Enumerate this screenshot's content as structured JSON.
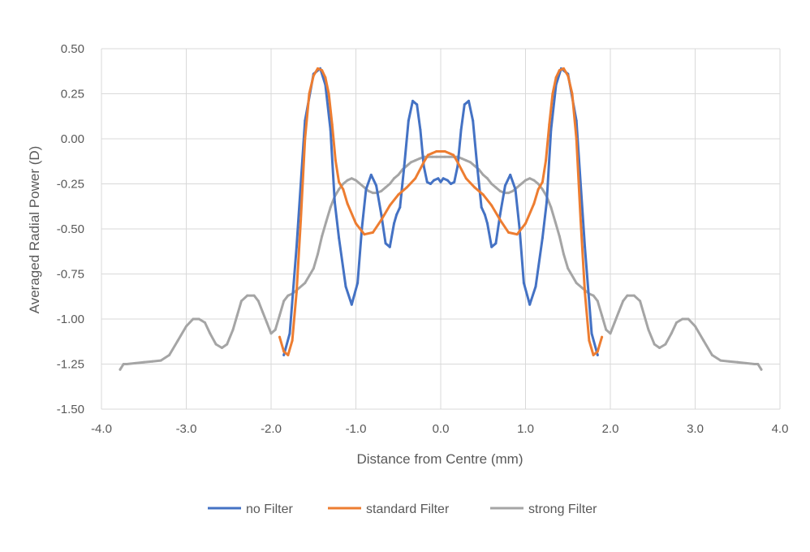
{
  "chart_data": {
    "type": "line",
    "title": "",
    "xlabel": "Distance from Centre (mm)",
    "ylabel": "Averaged Radial Power (D)",
    "xlim": [
      -4.0,
      4.0
    ],
    "ylim": [
      -1.5,
      0.5
    ],
    "x_ticks": [
      "-4.0",
      "-3.0",
      "-2.0",
      "-1.0",
      "0.0",
      "1.0",
      "2.0",
      "3.0",
      "4.0"
    ],
    "y_ticks": [
      "0.50",
      "0.25",
      "0.00",
      "-0.25",
      "-0.50",
      "-0.75",
      "-1.00",
      "-1.25",
      "-1.50"
    ],
    "grid": true,
    "legend_position": "bottom",
    "series": [
      {
        "name": "no Filter",
        "color": "#4472C4",
        "x": [
          -1.85,
          -1.78,
          -1.7,
          -1.6,
          -1.5,
          -1.42,
          -1.36,
          -1.3,
          -1.25,
          -1.2,
          -1.12,
          -1.05,
          -0.98,
          -0.93,
          -0.88,
          -0.82,
          -0.76,
          -0.7,
          -0.65,
          -0.6,
          -0.55,
          -0.52,
          -0.48,
          -0.43,
          -0.38,
          -0.33,
          -0.28,
          -0.24,
          -0.2,
          -0.16,
          -0.12,
          -0.08,
          -0.03,
          0.0,
          0.03,
          0.08,
          0.12,
          0.16,
          0.2,
          0.24,
          0.28,
          0.33,
          0.38,
          0.43,
          0.48,
          0.52,
          0.55,
          0.6,
          0.65,
          0.7,
          0.76,
          0.82,
          0.88,
          0.93,
          0.98,
          1.05,
          1.12,
          1.2,
          1.25,
          1.3,
          1.36,
          1.42,
          1.5,
          1.6,
          1.7,
          1.78,
          1.85
        ],
        "values": [
          -1.2,
          -1.08,
          -0.6,
          0.1,
          0.36,
          0.39,
          0.3,
          0.05,
          -0.35,
          -0.55,
          -0.82,
          -0.92,
          -0.8,
          -0.5,
          -0.28,
          -0.2,
          -0.26,
          -0.42,
          -0.58,
          -0.6,
          -0.47,
          -0.42,
          -0.38,
          -0.15,
          0.1,
          0.21,
          0.19,
          0.05,
          -0.15,
          -0.24,
          -0.25,
          -0.23,
          -0.22,
          -0.24,
          -0.22,
          -0.23,
          -0.25,
          -0.24,
          -0.15,
          0.05,
          0.19,
          0.21,
          0.1,
          -0.15,
          -0.38,
          -0.42,
          -0.47,
          -0.6,
          -0.58,
          -0.42,
          -0.26,
          -0.2,
          -0.28,
          -0.5,
          -0.8,
          -0.92,
          -0.82,
          -0.55,
          -0.35,
          0.05,
          0.3,
          0.39,
          0.36,
          0.1,
          -0.6,
          -1.08,
          -1.2
        ]
      },
      {
        "name": "standard Filter",
        "color": "#ED7D31",
        "x": [
          -1.9,
          -1.85,
          -1.8,
          -1.75,
          -1.7,
          -1.65,
          -1.6,
          -1.55,
          -1.5,
          -1.45,
          -1.4,
          -1.36,
          -1.32,
          -1.28,
          -1.24,
          -1.2,
          -1.15,
          -1.1,
          -1.0,
          -0.9,
          -0.8,
          -0.7,
          -0.6,
          -0.5,
          -0.4,
          -0.3,
          -0.2,
          -0.15,
          -0.1,
          -0.05,
          0.0,
          0.05,
          0.1,
          0.15,
          0.2,
          0.3,
          0.4,
          0.5,
          0.6,
          0.7,
          0.8,
          0.9,
          1.0,
          1.1,
          1.15,
          1.2,
          1.24,
          1.28,
          1.32,
          1.36,
          1.4,
          1.45,
          1.5,
          1.55,
          1.6,
          1.65,
          1.7,
          1.75,
          1.8,
          1.85,
          1.9
        ],
        "values": [
          -1.1,
          -1.18,
          -1.2,
          -1.12,
          -0.85,
          -0.45,
          0.0,
          0.25,
          0.35,
          0.39,
          0.38,
          0.34,
          0.25,
          0.08,
          -0.12,
          -0.24,
          -0.28,
          -0.36,
          -0.47,
          -0.53,
          -0.52,
          -0.45,
          -0.37,
          -0.31,
          -0.27,
          -0.22,
          -0.13,
          -0.09,
          -0.08,
          -0.07,
          -0.07,
          -0.07,
          -0.08,
          -0.09,
          -0.13,
          -0.22,
          -0.27,
          -0.31,
          -0.37,
          -0.45,
          -0.52,
          -0.53,
          -0.47,
          -0.36,
          -0.28,
          -0.24,
          -0.12,
          0.08,
          0.25,
          0.34,
          0.38,
          0.39,
          0.35,
          0.25,
          0.0,
          -0.45,
          -0.85,
          -1.12,
          -1.2,
          -1.18,
          -1.1
        ]
      },
      {
        "name": "strong Filter",
        "color": "#A5A5A5",
        "x": [
          -3.78,
          -3.74,
          -3.7,
          -3.6,
          -3.5,
          -3.4,
          -3.3,
          -3.2,
          -3.1,
          -3.0,
          -2.92,
          -2.85,
          -2.78,
          -2.72,
          -2.65,
          -2.58,
          -2.52,
          -2.45,
          -2.4,
          -2.35,
          -2.28,
          -2.2,
          -2.15,
          -2.1,
          -2.05,
          -2.0,
          -1.95,
          -1.9,
          -1.85,
          -1.8,
          -1.75,
          -1.7,
          -1.6,
          -1.5,
          -1.45,
          -1.4,
          -1.35,
          -1.3,
          -1.25,
          -1.2,
          -1.15,
          -1.1,
          -1.05,
          -1.0,
          -0.95,
          -0.9,
          -0.85,
          -0.8,
          -0.75,
          -0.7,
          -0.65,
          -0.6,
          -0.55,
          -0.5,
          -0.45,
          -0.4,
          -0.35,
          -0.3,
          -0.25,
          -0.2,
          -0.15,
          -0.1,
          -0.05,
          0.0,
          0.05,
          0.1,
          0.15,
          0.2,
          0.25,
          0.3,
          0.35,
          0.4,
          0.45,
          0.5,
          0.55,
          0.6,
          0.65,
          0.7,
          0.75,
          0.8,
          0.85,
          0.9,
          0.95,
          1.0,
          1.05,
          1.1,
          1.15,
          1.2,
          1.25,
          1.3,
          1.35,
          1.4,
          1.45,
          1.5,
          1.6,
          1.7,
          1.75,
          1.8,
          1.85,
          1.9,
          1.95,
          2.0,
          2.05,
          2.1,
          2.15,
          2.2,
          2.28,
          2.35,
          2.4,
          2.45,
          2.52,
          2.58,
          2.65,
          2.72,
          2.78,
          2.85,
          2.92,
          3.0,
          3.1,
          3.2,
          3.3,
          3.4,
          3.5,
          3.6,
          3.7,
          3.74,
          3.78
        ],
        "values": [
          -1.28,
          -1.25,
          -1.25,
          -1.245,
          -1.24,
          -1.235,
          -1.23,
          -1.2,
          -1.12,
          -1.04,
          -1.0,
          -1.0,
          -1.02,
          -1.08,
          -1.14,
          -1.16,
          -1.14,
          -1.06,
          -0.98,
          -0.9,
          -0.87,
          -0.87,
          -0.9,
          -0.96,
          -1.02,
          -1.08,
          -1.06,
          -0.98,
          -0.9,
          -0.87,
          -0.86,
          -0.84,
          -0.8,
          -0.72,
          -0.64,
          -0.54,
          -0.46,
          -0.38,
          -0.32,
          -0.28,
          -0.25,
          -0.23,
          -0.22,
          -0.23,
          -0.25,
          -0.27,
          -0.29,
          -0.3,
          -0.3,
          -0.29,
          -0.27,
          -0.25,
          -0.22,
          -0.2,
          -0.17,
          -0.15,
          -0.13,
          -0.12,
          -0.11,
          -0.1,
          -0.1,
          -0.1,
          -0.1,
          -0.1,
          -0.1,
          -0.1,
          -0.1,
          -0.1,
          -0.11,
          -0.12,
          -0.13,
          -0.15,
          -0.17,
          -0.2,
          -0.22,
          -0.25,
          -0.27,
          -0.29,
          -0.3,
          -0.3,
          -0.29,
          -0.27,
          -0.25,
          -0.23,
          -0.22,
          -0.23,
          -0.25,
          -0.28,
          -0.32,
          -0.38,
          -0.46,
          -0.54,
          -0.64,
          -0.72,
          -0.8,
          -0.84,
          -0.86,
          -0.87,
          -0.9,
          -0.98,
          -1.06,
          -1.08,
          -1.02,
          -0.96,
          -0.9,
          -0.87,
          -0.87,
          -0.9,
          -0.98,
          -1.06,
          -1.14,
          -1.16,
          -1.14,
          -1.08,
          -1.02,
          -1.0,
          -1.0,
          -1.04,
          -1.12,
          -1.2,
          -1.23,
          -1.235,
          -1.24,
          -1.245,
          -1.25,
          -1.25,
          -1.28
        ]
      }
    ]
  }
}
